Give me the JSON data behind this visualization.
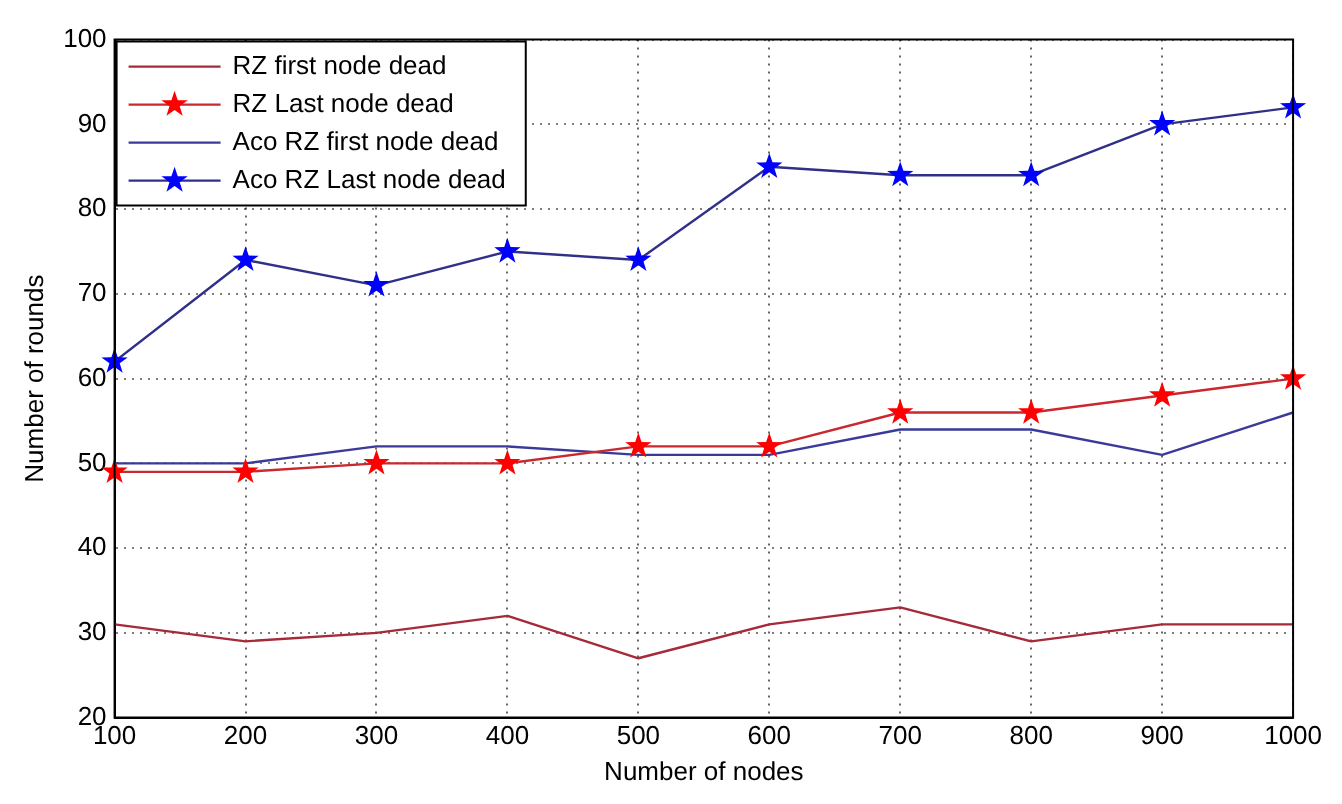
{
  "chart_data": {
    "type": "line",
    "xlabel": "Number of nodes",
    "ylabel": "Number of rounds",
    "x": [
      100,
      200,
      300,
      400,
      500,
      600,
      700,
      800,
      900,
      1000
    ],
    "series": [
      {
        "name": "RZ first node dead",
        "color": "#a52a3a",
        "marker": "none",
        "values": [
          31,
          29,
          30,
          32,
          27,
          31,
          33,
          29,
          31,
          31
        ]
      },
      {
        "name": "RZ Last node dead",
        "color": "#c8282e",
        "marker": "star",
        "values": [
          49,
          49,
          50,
          50,
          52,
          52,
          56,
          56,
          58,
          60
        ]
      },
      {
        "name": "Aco RZ first node dead",
        "color": "#3a3a9a",
        "marker": "none",
        "values": [
          50,
          50,
          52,
          52,
          51,
          51,
          54,
          54,
          51,
          56
        ]
      },
      {
        "name": "Aco RZ Last node dead",
        "color": "#30308a",
        "marker": "star",
        "values": [
          62,
          74,
          71,
          75,
          74,
          85,
          84,
          84,
          90,
          92
        ]
      }
    ],
    "xlim": [
      100,
      1000
    ],
    "xticks": [
      100,
      200,
      300,
      400,
      500,
      600,
      700,
      800,
      900,
      1000
    ],
    "ylim": [
      20,
      100
    ],
    "yticks": [
      20,
      30,
      40,
      50,
      60,
      70,
      80,
      90,
      100
    ],
    "grid": true,
    "legend": "top left",
    "line_style": "solid"
  }
}
